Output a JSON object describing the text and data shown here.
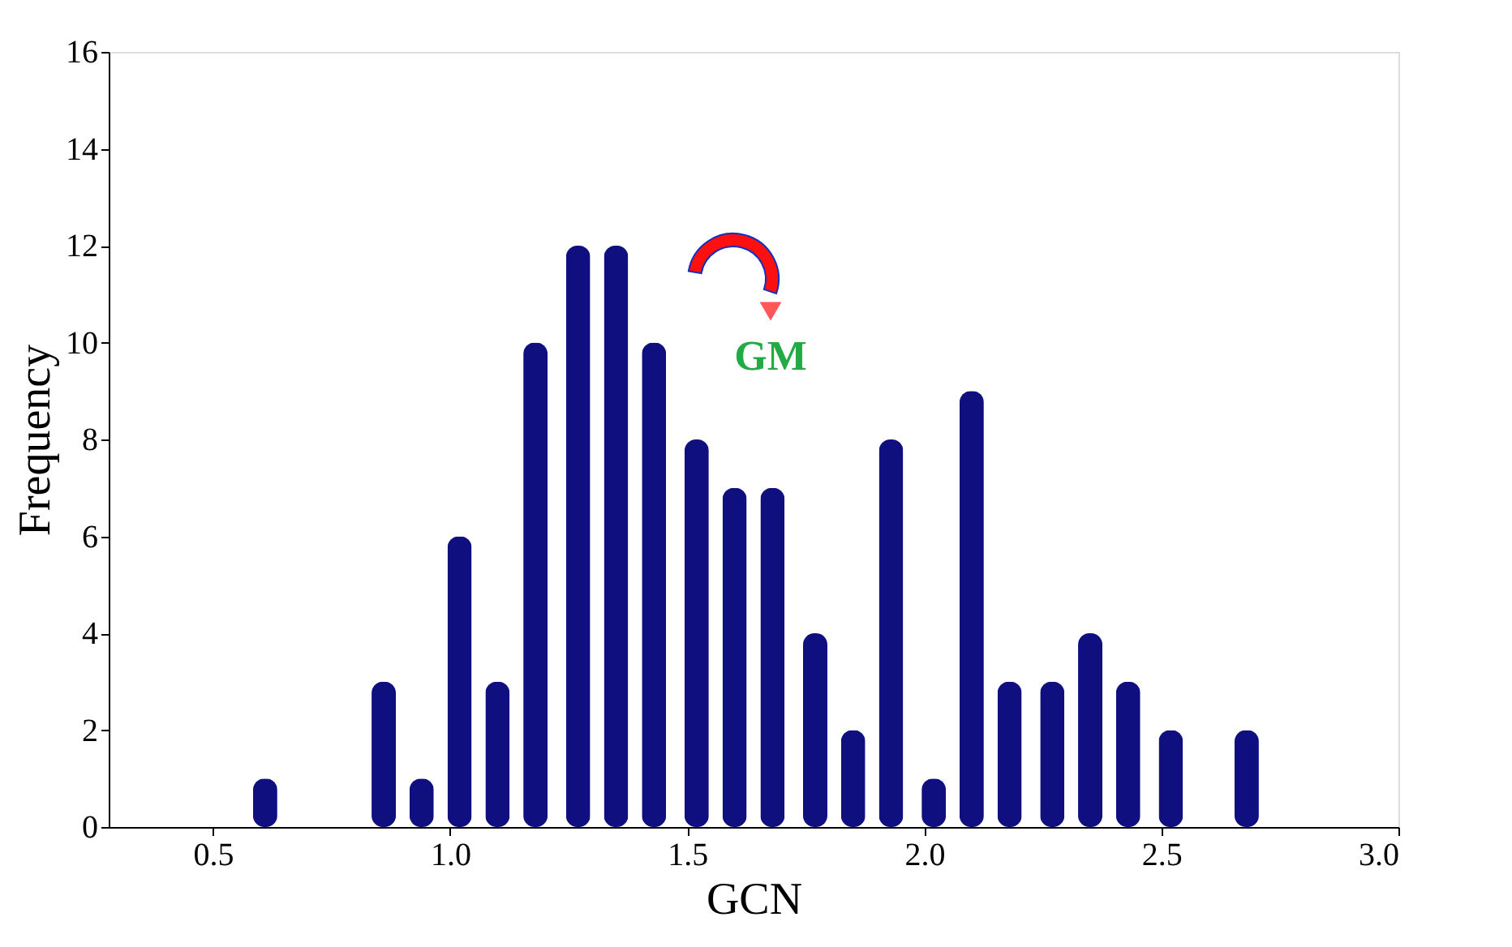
{
  "chart_data": {
    "type": "bar",
    "xlabel": "GCN",
    "ylabel": "Frequency",
    "x": [
      0.61,
      0.86,
      0.94,
      1.02,
      1.1,
      1.18,
      1.27,
      1.35,
      1.43,
      1.52,
      1.6,
      1.68,
      1.77,
      1.85,
      1.93,
      2.02,
      2.1,
      2.18,
      2.27,
      2.35,
      2.43,
      2.52,
      2.68
    ],
    "values": [
      1,
      3,
      1,
      6,
      3,
      10,
      12,
      12,
      10,
      8,
      7,
      7,
      4,
      2,
      8,
      1,
      9,
      3,
      3,
      4,
      3,
      2,
      2
    ],
    "color": "#0f0f80",
    "xlim": [
      0.28,
      3.0
    ],
    "xticks": [
      0.5,
      {
        "value": 1,
        "label": "1.0"
      },
      1.5,
      {
        "value": 2,
        "label": "2.0"
      },
      2.5,
      {
        "value": 3,
        "label": "3.0"
      }
    ],
    "ylim": [
      0,
      16
    ],
    "yticks": [
      0,
      2,
      4,
      6,
      8,
      10,
      12,
      14,
      16
    ],
    "grid": false,
    "annotations": [
      "GM"
    ]
  }
}
